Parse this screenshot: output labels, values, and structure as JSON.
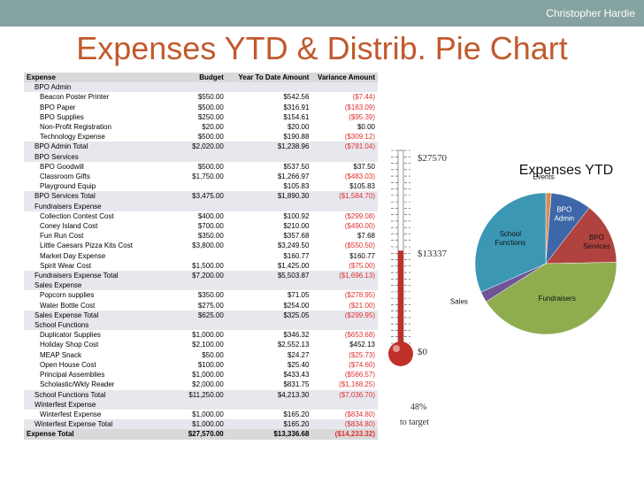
{
  "header": {
    "author": "Christopher Hardie"
  },
  "title": "Expenses YTD & Distrib. Pie Chart",
  "table": {
    "columns": [
      "Expense",
      "Budget",
      "Year To Date Amount",
      "Variance Amount"
    ],
    "rows": [
      {
        "kind": "group",
        "label": "BPO Admin",
        "budget": "",
        "ytd": "",
        "variance": "",
        "neg": false
      },
      {
        "kind": "item",
        "label": "Beacon Poster Printer",
        "budget": "$550.00",
        "ytd": "$542.56",
        "variance": "($7.44)",
        "neg": true
      },
      {
        "kind": "item",
        "label": "BPO Paper",
        "budget": "$500.00",
        "ytd": "$316.91",
        "variance": "($183.09)",
        "neg": true
      },
      {
        "kind": "item",
        "label": "BPO Supplies",
        "budget": "$250.00",
        "ytd": "$154.61",
        "variance": "($95.39)",
        "neg": true
      },
      {
        "kind": "item",
        "label": "Non-Profit Registration",
        "budget": "$20.00",
        "ytd": "$20.00",
        "variance": "$0.00",
        "neg": false
      },
      {
        "kind": "item",
        "label": "Technology Expense",
        "budget": "$500.00",
        "ytd": "$190.88",
        "variance": "($309.12)",
        "neg": true
      },
      {
        "kind": "total",
        "label": "BPO Admin Total",
        "budget": "$2,020.00",
        "ytd": "$1,238.96",
        "variance": "($781.04)",
        "neg": true
      },
      {
        "kind": "group",
        "label": "BPO Services",
        "budget": "",
        "ytd": "",
        "variance": "",
        "neg": false
      },
      {
        "kind": "item",
        "label": "BPO Goodwill",
        "budget": "$500.00",
        "ytd": "$537.50",
        "variance": "$37.50",
        "neg": false
      },
      {
        "kind": "item",
        "label": "Classroom Gifts",
        "budget": "$1,750.00",
        "ytd": "$1,266.97",
        "variance": "($483.03)",
        "neg": true
      },
      {
        "kind": "item",
        "label": "Playground Equip",
        "budget": "",
        "ytd": "$105.83",
        "variance": "$105.83",
        "neg": false
      },
      {
        "kind": "total",
        "label": "BPO Services Total",
        "budget": "$3,475.00",
        "ytd": "$1,890.30",
        "variance": "($1,584.70)",
        "neg": true
      },
      {
        "kind": "group",
        "label": "Fundraisers Expense",
        "budget": "",
        "ytd": "",
        "variance": "",
        "neg": false
      },
      {
        "kind": "item",
        "label": "Collection Contest Cost",
        "budget": "$400.00",
        "ytd": "$100.92",
        "variance": "($299.08)",
        "neg": true
      },
      {
        "kind": "item",
        "label": "Coney Island Cost",
        "budget": "$700.00",
        "ytd": "$210.00",
        "variance": "($490.00)",
        "neg": true
      },
      {
        "kind": "item",
        "label": "Fun Run Cost",
        "budget": "$350.00",
        "ytd": "$357.68",
        "variance": "$7.68",
        "neg": false
      },
      {
        "kind": "item",
        "label": "Little Caesars Pizza Kits Cost",
        "budget": "$3,800.00",
        "ytd": "$3,249.50",
        "variance": "($550.50)",
        "neg": true
      },
      {
        "kind": "item",
        "label": "Market Day Expense",
        "budget": "",
        "ytd": "$160.77",
        "variance": "$160.77",
        "neg": false
      },
      {
        "kind": "item",
        "label": "Spirit Wear Cost",
        "budget": "$1,500.00",
        "ytd": "$1,425.00",
        "variance": "($75.00)",
        "neg": true
      },
      {
        "kind": "total",
        "label": "Fundraisers Expense Total",
        "budget": "$7,200.00",
        "ytd": "$5,503.87",
        "variance": "($1,696.13)",
        "neg": true
      },
      {
        "kind": "group",
        "label": "Sales Expense",
        "budget": "",
        "ytd": "",
        "variance": "",
        "neg": false
      },
      {
        "kind": "item",
        "label": "Popcorn supplies",
        "budget": "$350.00",
        "ytd": "$71.05",
        "variance": "($278.95)",
        "neg": true
      },
      {
        "kind": "item",
        "label": "Water Bottle Cost",
        "budget": "$275.00",
        "ytd": "$254.00",
        "variance": "($21.00)",
        "neg": true
      },
      {
        "kind": "total",
        "label": "Sales Expense Total",
        "budget": "$625.00",
        "ytd": "$325.05",
        "variance": "($299.95)",
        "neg": true
      },
      {
        "kind": "group",
        "label": "School Functions",
        "budget": "",
        "ytd": "",
        "variance": "",
        "neg": false
      },
      {
        "kind": "item",
        "label": "Duplicator Supplies",
        "budget": "$1,000.00",
        "ytd": "$346.32",
        "variance": "($653.68)",
        "neg": true
      },
      {
        "kind": "item",
        "label": "Holiday Shop Cost",
        "budget": "$2,100.00",
        "ytd": "$2,552.13",
        "variance": "$452.13",
        "neg": false
      },
      {
        "kind": "item",
        "label": "MEAP Snack",
        "budget": "$50.00",
        "ytd": "$24.27",
        "variance": "($25.73)",
        "neg": true
      },
      {
        "kind": "item",
        "label": "Open House Cost",
        "budget": "$100.00",
        "ytd": "$25.40",
        "variance": "($74.60)",
        "neg": true
      },
      {
        "kind": "item",
        "label": "Principal Assemblies",
        "budget": "$1,000.00",
        "ytd": "$433.43",
        "variance": "($566.57)",
        "neg": true
      },
      {
        "kind": "item",
        "label": "Scholastic/Wkly Reader",
        "budget": "$2,000.00",
        "ytd": "$831.75",
        "variance": "($1,168.25)",
        "neg": true
      },
      {
        "kind": "total",
        "label": "School Functions Total",
        "budget": "$11,250.00",
        "ytd": "$4,213.30",
        "variance": "($7,036.70)",
        "neg": true
      },
      {
        "kind": "group",
        "label": "Winterfest Expense",
        "budget": "",
        "ytd": "",
        "variance": "",
        "neg": false
      },
      {
        "kind": "item",
        "label": "Winterfest Expense",
        "budget": "$1,000.00",
        "ytd": "$165.20",
        "variance": "($834.80)",
        "neg": true
      },
      {
        "kind": "total",
        "label": "Winterfest Expense Total",
        "budget": "$1,000.00",
        "ytd": "$165.20",
        "variance": "($834.80)",
        "neg": true
      },
      {
        "kind": "grand",
        "label": "Expense Total",
        "budget": "$27,570.00",
        "ytd": "$13,336.68",
        "variance": "($14,233.32)",
        "neg": true
      }
    ]
  },
  "thermometer": {
    "top_label": "$27570",
    "mid_label": "$13337",
    "bottom_label": "$0",
    "percent_label": "48%",
    "target_label": "to target",
    "fraction_filled": 0.48,
    "fill_color": "#c0302a"
  },
  "chart_data": {
    "type": "pie",
    "title": "Expenses YTD",
    "categories": [
      "Events",
      "BPO Admin",
      "BPO Services",
      "Fundraisers",
      "Sales",
      "School Functions"
    ],
    "values": [
      165.2,
      1238.96,
      1890.3,
      5503.87,
      325.05,
      4213.3
    ],
    "colors": [
      "#d98b55",
      "#3d67a8",
      "#b0433f",
      "#8fac4f",
      "#6d5597",
      "#3c97b5"
    ]
  }
}
